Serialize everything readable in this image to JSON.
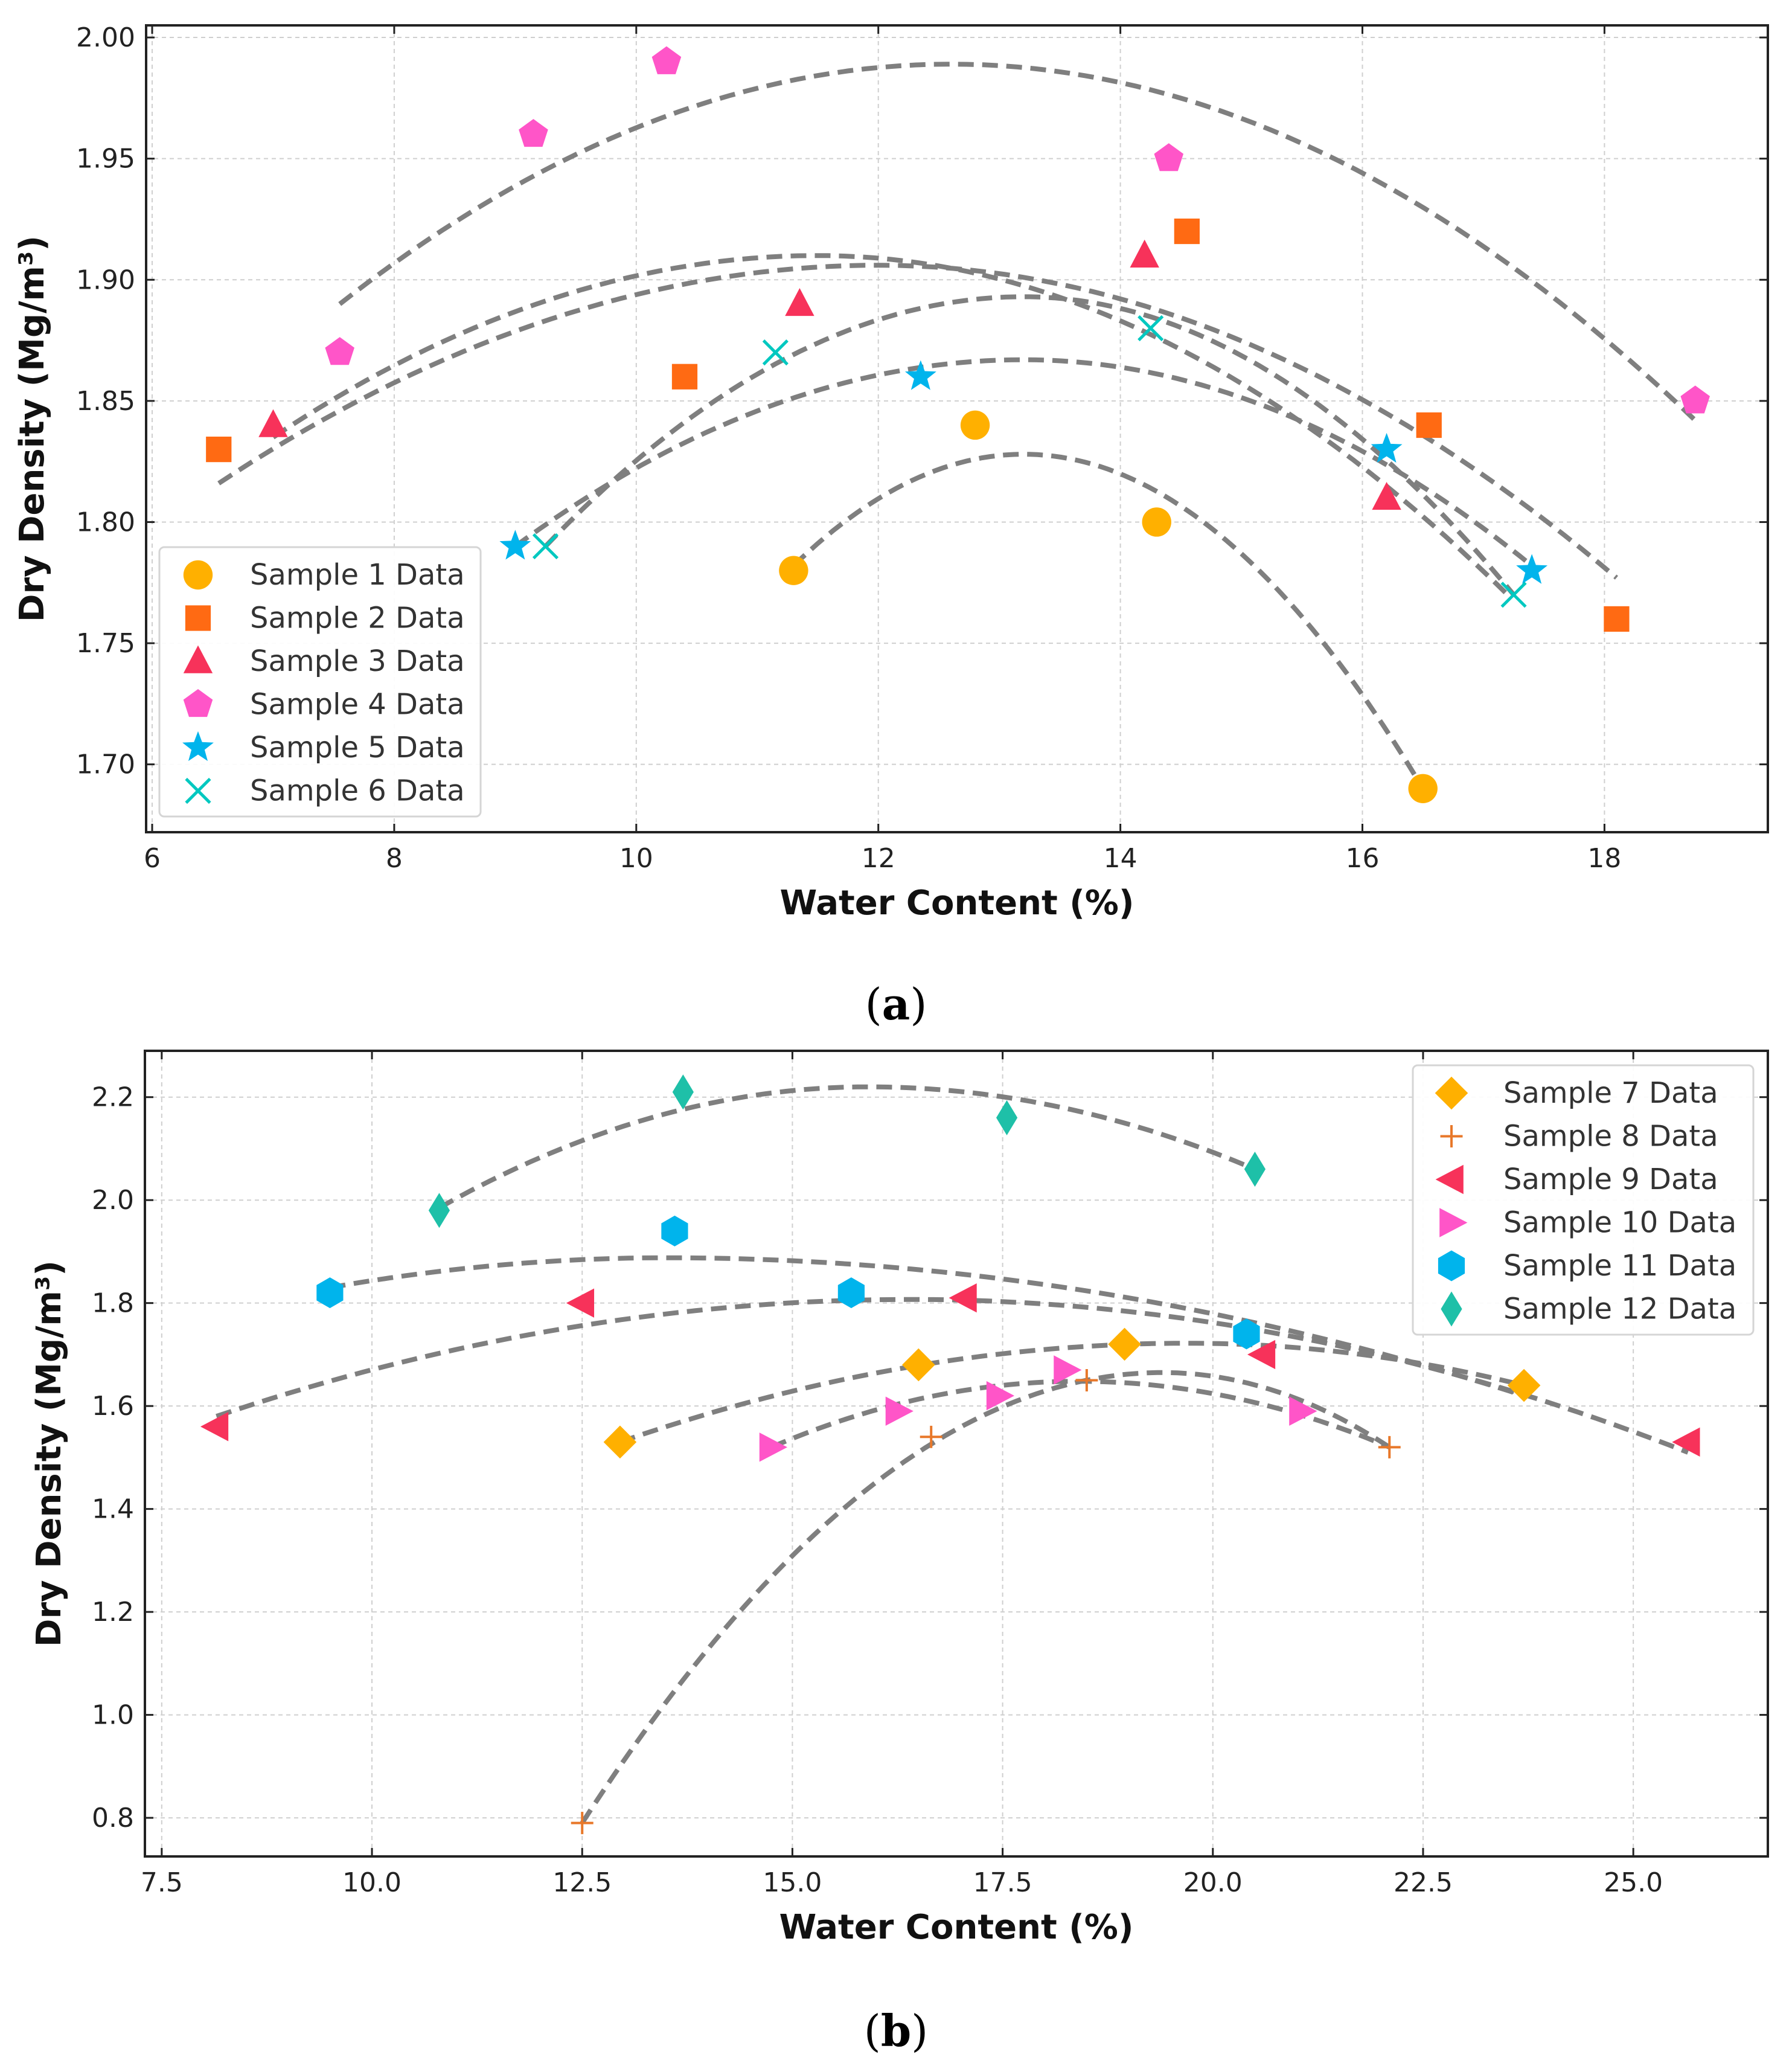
{
  "chart_data": [
    {
      "type": "scatter",
      "panel_label": "a",
      "title": "",
      "xlabel": "Water Content (%)",
      "ylabel": "Dry Density (Mg/m³)",
      "xlim": [
        5.95,
        19.35
      ],
      "ylim": [
        1.672,
        2.005
      ],
      "xticks": [
        6,
        8,
        10,
        12,
        14,
        16,
        18
      ],
      "xtick_labels": [
        "6",
        "8",
        "10",
        "12",
        "14",
        "16",
        "18"
      ],
      "yticks": [
        1.7,
        1.75,
        1.8,
        1.85,
        1.9,
        1.95,
        2.0
      ],
      "ytick_labels": [
        "1.70",
        "1.75",
        "1.80",
        "1.85",
        "1.90",
        "1.95",
        "2.00"
      ],
      "grid": true,
      "legend_position": "lower-left",
      "series": [
        {
          "name": "Sample 1 Data",
          "marker": "circle",
          "color": "#FFB000",
          "x": [
            11.3,
            12.8,
            14.3,
            16.5
          ],
          "y": [
            1.78,
            1.84,
            1.8,
            1.69
          ],
          "fit_x": [
            11.3,
            16.5
          ],
          "fit_peak": [
            13.2,
            1.828
          ],
          "fit_end_y": 1.69,
          "fit_start_y": 1.782
        },
        {
          "name": "Sample 2 Data",
          "marker": "square",
          "color": "#FF6A13",
          "x": [
            6.55,
            10.4,
            14.55,
            16.55,
            18.1
          ],
          "y": [
            1.83,
            1.86,
            1.92,
            1.84,
            1.76
          ],
          "fit_x": [
            6.55,
            18.1
          ],
          "fit_peak": [
            12.0,
            1.906
          ],
          "fit_start_y": 1.816,
          "fit_end_y": 1.777
        },
        {
          "name": "Sample 3 Data",
          "marker": "triangle-up",
          "color": "#F7325A",
          "x": [
            7.0,
            11.35,
            14.2,
            16.2
          ],
          "y": [
            1.84,
            1.89,
            1.91,
            1.81
          ],
          "fit_x": [
            7.0,
            17.2
          ],
          "fit_peak": [
            11.5,
            1.91
          ],
          "fit_start_y": 1.835,
          "fit_end_y": 1.77
        },
        {
          "name": "Sample 4 Data",
          "marker": "pentagon",
          "color": "#FF55C8",
          "x": [
            7.55,
            9.15,
            10.25,
            14.4,
            18.75
          ],
          "y": [
            1.87,
            1.96,
            1.99,
            1.95,
            1.85
          ],
          "fit_x": [
            7.55,
            18.75
          ],
          "fit_peak": [
            12.6,
            1.989
          ],
          "fit_start_y": 1.89,
          "fit_end_y": 1.842
        },
        {
          "name": "Sample 5 Data",
          "marker": "star",
          "color": "#00B4EC",
          "x": [
            9.0,
            12.35,
            16.2,
            17.4
          ],
          "y": [
            1.79,
            1.86,
            1.83,
            1.78
          ],
          "fit_x": [
            9.0,
            17.4
          ],
          "fit_peak": [
            13.2,
            1.867
          ],
          "fit_start_y": 1.79,
          "fit_end_y": 1.782
        },
        {
          "name": "Sample 6 Data",
          "marker": "x",
          "color": "#00C8C0",
          "x": [
            9.25,
            11.15,
            14.25,
            17.25
          ],
          "y": [
            1.79,
            1.87,
            1.88,
            1.77
          ],
          "fit_x": [
            9.25,
            17.25
          ],
          "fit_peak": [
            13.2,
            1.893
          ],
          "fit_start_y": 1.79,
          "fit_end_y": 1.77
        }
      ]
    },
    {
      "type": "scatter",
      "panel_label": "b",
      "title": "",
      "xlabel": "Water Content (%)",
      "ylabel": "Dry Density (Mg/m³)",
      "xlim": [
        7.3,
        26.6
      ],
      "ylim": [
        0.725,
        2.29
      ],
      "xticks": [
        7.5,
        10.0,
        12.5,
        15.0,
        17.5,
        20.0,
        22.5,
        25.0
      ],
      "xtick_labels": [
        "7.5",
        "10.0",
        "12.5",
        "15.0",
        "17.5",
        "20.0",
        "22.5",
        "25.0"
      ],
      "yticks": [
        0.8,
        1.0,
        1.2,
        1.4,
        1.6,
        1.8,
        2.0,
        2.2
      ],
      "ytick_labels": [
        "0.8",
        "1.0",
        "1.2",
        "1.4",
        "1.6",
        "1.8",
        "2.0",
        "2.2"
      ],
      "grid": true,
      "legend_position": "upper-right",
      "series": [
        {
          "name": "Sample 7 Data",
          "marker": "diamond",
          "color": "#FFB000",
          "x": [
            12.95,
            16.5,
            18.95,
            23.7
          ],
          "y": [
            1.53,
            1.68,
            1.72,
            1.64
          ],
          "fit_x": [
            12.95,
            23.7
          ],
          "fit_peak": [
            19.7,
            1.722
          ],
          "fit_start_y": 1.53,
          "fit_end_y": 1.64
        },
        {
          "name": "Sample 8 Data",
          "marker": "plus",
          "color": "#E8782A",
          "x": [
            12.5,
            16.65,
            18.5,
            22.1
          ],
          "y": [
            0.79,
            1.54,
            1.65,
            1.52
          ],
          "fit_x": [
            12.5,
            22.1
          ],
          "fit_peak": [
            19.4,
            1.665
          ],
          "fit_start_y": 0.79,
          "fit_end_y": 1.52
        },
        {
          "name": "Sample 9 Data",
          "marker": "triangle-left",
          "color": "#F7325A",
          "x": [
            8.15,
            12.5,
            17.05,
            20.6,
            25.65
          ],
          "y": [
            1.56,
            1.8,
            1.81,
            1.7,
            1.53
          ],
          "fit_x": [
            8.15,
            25.65
          ],
          "fit_peak": [
            16.4,
            1.807
          ],
          "fit_start_y": 1.58,
          "fit_end_y": 1.51
        },
        {
          "name": "Sample 10 Data",
          "marker": "triangle-right",
          "color": "#FF55C8",
          "x": [
            14.75,
            16.25,
            17.45,
            18.25,
            21.05
          ],
          "y": [
            1.52,
            1.59,
            1.62,
            1.67,
            1.59
          ],
          "fit_x": [
            14.75,
            22.1
          ],
          "fit_peak": [
            18.4,
            1.648
          ],
          "fit_start_y": 1.52,
          "fit_end_y": 1.52
        },
        {
          "name": "Sample 11 Data",
          "marker": "hexagon",
          "color": "#00B4EC",
          "x": [
            9.5,
            13.6,
            15.7,
            20.4
          ],
          "y": [
            1.82,
            1.94,
            1.82,
            1.74
          ],
          "fit_x": [
            9.5,
            23.7
          ],
          "fit_peak": [
            13.5,
            1.888
          ],
          "fit_start_y": 1.83,
          "fit_end_y": 1.62
        },
        {
          "name": "Sample 12 Data",
          "marker": "thin-diamond",
          "color": "#1EC0A8",
          "x": [
            10.8,
            13.7,
            17.55,
            20.5
          ],
          "y": [
            1.98,
            2.21,
            2.16,
            2.06
          ],
          "fit_x": [
            10.8,
            20.5
          ],
          "fit_peak": [
            15.9,
            2.22
          ],
          "fit_start_y": 1.985,
          "fit_end_y": 2.06
        }
      ]
    }
  ]
}
